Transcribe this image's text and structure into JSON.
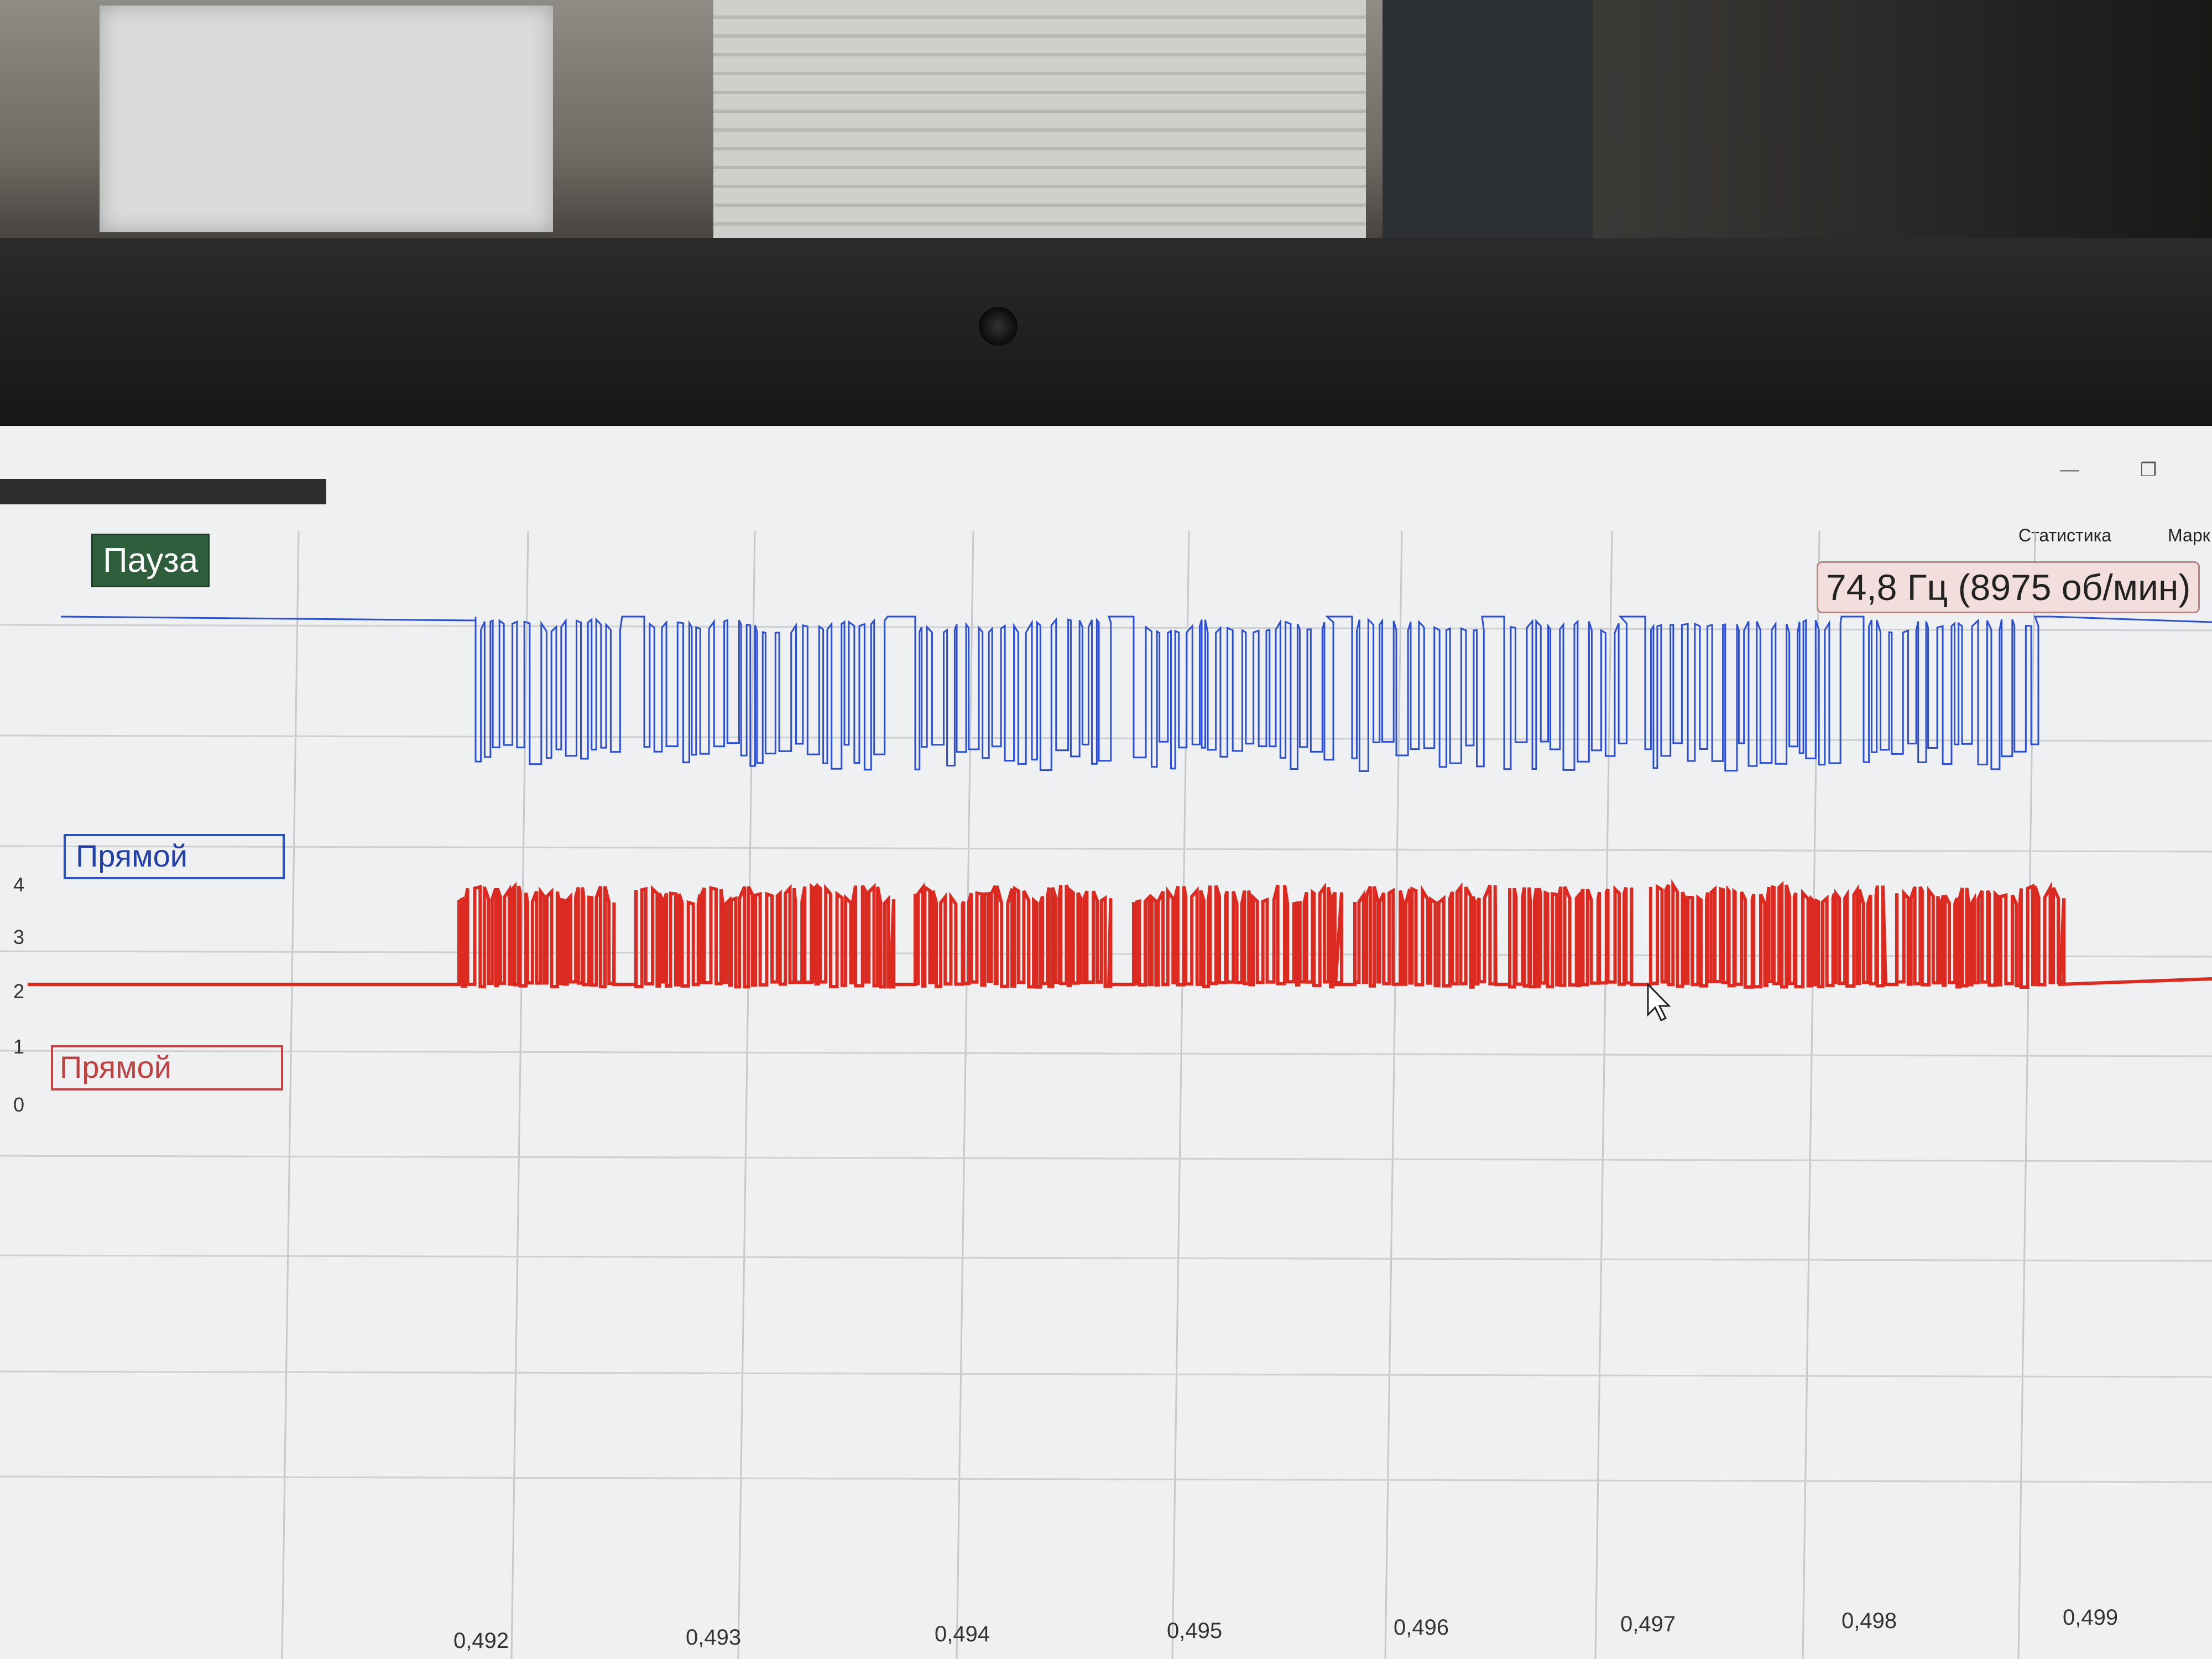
{
  "toolbar": {
    "pause_label": "Пауза",
    "statistics_label": "Статистика",
    "marker_label": "Марк"
  },
  "readout": {
    "frequency": "74,8 Гц (8975 об/мин)"
  },
  "channels": [
    {
      "name": "Прямой",
      "color": "#2a4fd6"
    },
    {
      "name": "Прямой",
      "color": "#dd2a20"
    }
  ],
  "chart_data": {
    "type": "line",
    "y_ticks": [
      "4",
      "3",
      "2",
      "1",
      "0"
    ],
    "x_ticks": [
      "0,492",
      "0,493",
      "0,494",
      "0,495",
      "0,496",
      "0,497",
      "0,498",
      "0,499"
    ],
    "x_ticks_partial": [
      "0,492"
    ],
    "grid": true
  },
  "icons": {
    "minimize": "minimize-icon",
    "restore": "restore-icon",
    "cursor": "mouse-pointer-icon"
  }
}
